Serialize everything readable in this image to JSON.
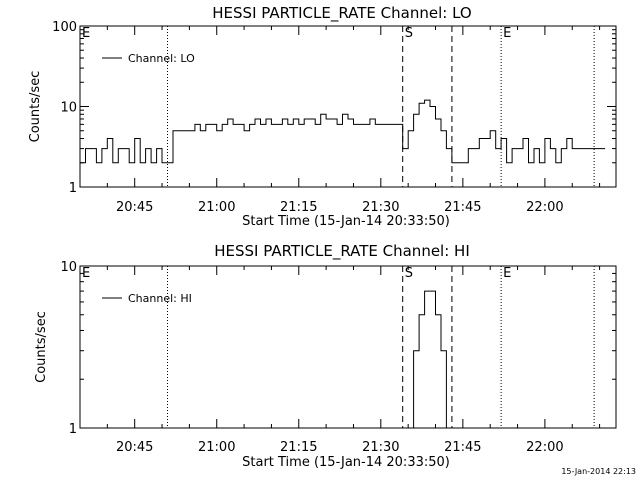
{
  "chart_data": [
    {
      "type": "line",
      "title": "HESSI PARTICLE_RATE Channel: LO",
      "xlabel": "Start Time (15-Jan-14 20:33:50)",
      "ylabel": "Counts/sec",
      "y_scale": "log",
      "ylim": [
        1,
        100
      ],
      "y_ticks": [
        {
          "value": 1,
          "label": "1"
        },
        {
          "value": 10,
          "label": "10"
        },
        {
          "value": 100,
          "label": "100"
        }
      ],
      "xlim": [
        "20:35",
        "22:13"
      ],
      "x_ticks": [
        "20:45",
        "21:00",
        "21:15",
        "21:30",
        "21:45",
        "22:00"
      ],
      "legend": {
        "placement": "top-left",
        "entries": [
          "Channel: LO"
        ]
      },
      "markers": [
        {
          "label": "E",
          "time": "20:35",
          "style": "dotted"
        },
        {
          "label": "",
          "time": "20:51",
          "style": "dotted"
        },
        {
          "label": "S",
          "time": "21:34",
          "style": "dashed"
        },
        {
          "label": "",
          "time": "21:43",
          "style": "dashed"
        },
        {
          "label": "E",
          "time": "21:52",
          "style": "dotted"
        },
        {
          "label": "",
          "time": "22:09",
          "style": "dotted"
        }
      ],
      "series": [
        {
          "name": "Channel: LO",
          "x": [
            "20:35",
            "20:36",
            "20:37",
            "20:38",
            "20:39",
            "20:40",
            "20:41",
            "20:42",
            "20:43",
            "20:44",
            "20:45",
            "20:46",
            "20:47",
            "20:48",
            "20:49",
            "20:50",
            "20:51",
            "20:52",
            "20:53",
            "20:54",
            "20:55",
            "20:56",
            "20:57",
            "20:58",
            "20:59",
            "21:00",
            "21:01",
            "21:02",
            "21:03",
            "21:04",
            "21:05",
            "21:06",
            "21:07",
            "21:08",
            "21:09",
            "21:10",
            "21:11",
            "21:12",
            "21:13",
            "21:14",
            "21:15",
            "21:16",
            "21:17",
            "21:18",
            "21:19",
            "21:20",
            "21:21",
            "21:22",
            "21:23",
            "21:24",
            "21:25",
            "21:26",
            "21:27",
            "21:28",
            "21:29",
            "21:30",
            "21:31",
            "21:32",
            "21:33",
            "21:34",
            "21:35",
            "21:36",
            "21:37",
            "21:38",
            "21:39",
            "21:40",
            "21:41",
            "21:42",
            "21:43",
            "21:44",
            "21:45",
            "21:46",
            "21:47",
            "21:48",
            "21:49",
            "21:50",
            "21:51",
            "21:52",
            "21:53",
            "21:54",
            "21:55",
            "21:56",
            "21:57",
            "21:58",
            "21:59",
            "22:00",
            "22:01",
            "22:02",
            "22:03",
            "22:04",
            "22:05",
            "22:06",
            "22:07",
            "22:08",
            "22:09",
            "22:10"
          ],
          "y": [
            2,
            3,
            3,
            2,
            3,
            4,
            2,
            3,
            3,
            2,
            4,
            2,
            3,
            2,
            3,
            2,
            2,
            5,
            5,
            5,
            5,
            6,
            5,
            6,
            6,
            5,
            6,
            7,
            6,
            6,
            5,
            6,
            7,
            6,
            7,
            6,
            6,
            7,
            6,
            7,
            6,
            7,
            7,
            6,
            8,
            7,
            7,
            6,
            8,
            7,
            6,
            6,
            6,
            7,
            6,
            6,
            6,
            6,
            6,
            3,
            5,
            8,
            11,
            12,
            10,
            7,
            5,
            3,
            2,
            2,
            2,
            3,
            3,
            4,
            4,
            5,
            3,
            4,
            2,
            3,
            3,
            4,
            2,
            3,
            2,
            4,
            3,
            2,
            3,
            4,
            3,
            3,
            3,
            3,
            3,
            3
          ]
        }
      ]
    },
    {
      "type": "line",
      "title": "HESSI PARTICLE_RATE Channel: HI",
      "xlabel": "Start Time (15-Jan-14 20:33:50)",
      "ylabel": "Counts/sec",
      "y_scale": "log",
      "ylim": [
        1,
        10
      ],
      "y_ticks": [
        {
          "value": 1,
          "label": "1"
        },
        {
          "value": 10,
          "label": "10"
        }
      ],
      "xlim": [
        "20:35",
        "22:13"
      ],
      "x_ticks": [
        "20:45",
        "21:00",
        "21:15",
        "21:30",
        "21:45",
        "22:00"
      ],
      "legend": {
        "placement": "top-left",
        "entries": [
          "Channel: HI"
        ]
      },
      "markers": [
        {
          "label": "E",
          "time": "20:35",
          "style": "dotted"
        },
        {
          "label": "",
          "time": "20:51",
          "style": "dotted"
        },
        {
          "label": "S",
          "time": "21:34",
          "style": "dashed"
        },
        {
          "label": "",
          "time": "21:43",
          "style": "dashed"
        },
        {
          "label": "E",
          "time": "21:52",
          "style": "dotted"
        },
        {
          "label": "",
          "time": "22:09",
          "style": "dotted"
        }
      ],
      "series": [
        {
          "name": "Channel: HI",
          "x": [
            "21:35",
            "21:36",
            "21:37",
            "21:38",
            "21:39",
            "21:40",
            "21:41",
            "21:42"
          ],
          "y": [
            0.9,
            3,
            5,
            7,
            7,
            5,
            3,
            0.9
          ]
        }
      ]
    }
  ],
  "timestamp": "15-Jan-2014 22:13"
}
